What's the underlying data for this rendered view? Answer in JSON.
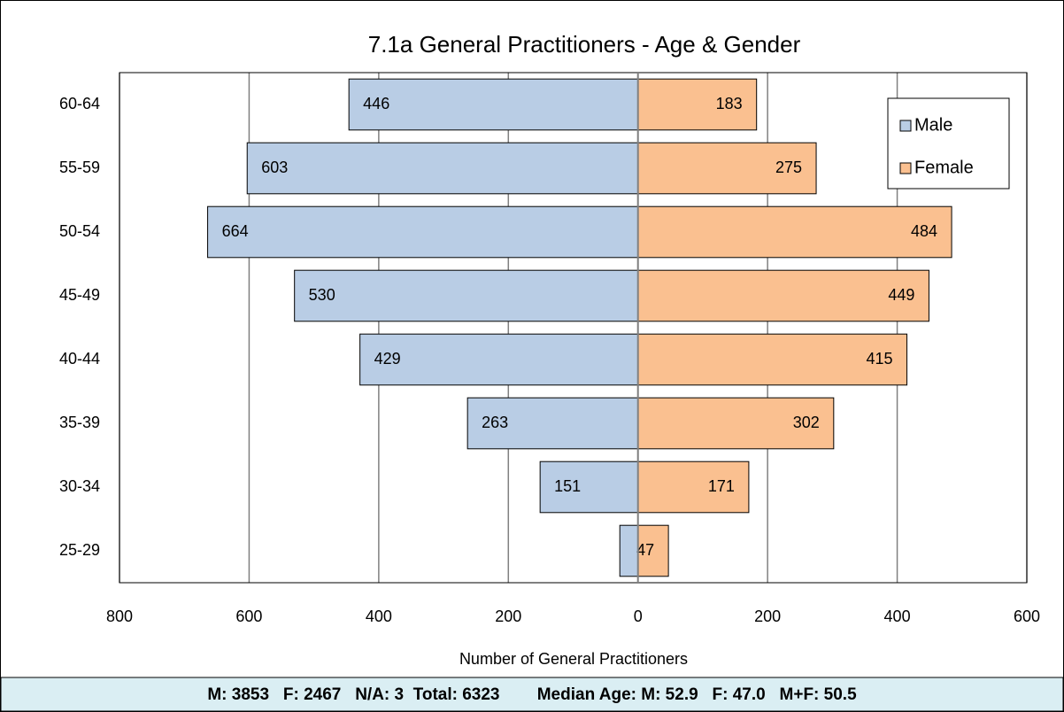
{
  "chart_data": {
    "type": "pyramid",
    "title": "7.1a General Practitioners - Age & Gender",
    "x_label": "Number of General Practitioners",
    "footer": "M: 3853   F: 2467   N/A: 3  Total: 6323        Median Age: M: 52.9   F: 47.0   M+F: 50.5",
    "categories": [
      "60-64",
      "55-59",
      "50-54",
      "45-49",
      "40-44",
      "35-39",
      "30-34",
      "25-29"
    ],
    "series": [
      {
        "name": "Male",
        "side": "left",
        "color": "#b9cde5",
        "values": [
          446,
          603,
          664,
          530,
          429,
          263,
          151,
          28
        ],
        "value_labels": [
          "446",
          "603",
          "664",
          "530",
          "429",
          "263",
          "151",
          null
        ]
      },
      {
        "name": "Female",
        "side": "right",
        "color": "#fac090",
        "values": [
          183,
          275,
          484,
          449,
          415,
          302,
          171,
          47
        ]
      }
    ],
    "xlim": [
      -800,
      600
    ],
    "xticks": [
      {
        "value": -800,
        "label": "800"
      },
      {
        "value": -600,
        "label": "600"
      },
      {
        "value": -400,
        "label": "400"
      },
      {
        "value": -200,
        "label": "200"
      },
      0,
      200,
      400,
      600
    ],
    "grid": true,
    "legend": "upper right"
  }
}
